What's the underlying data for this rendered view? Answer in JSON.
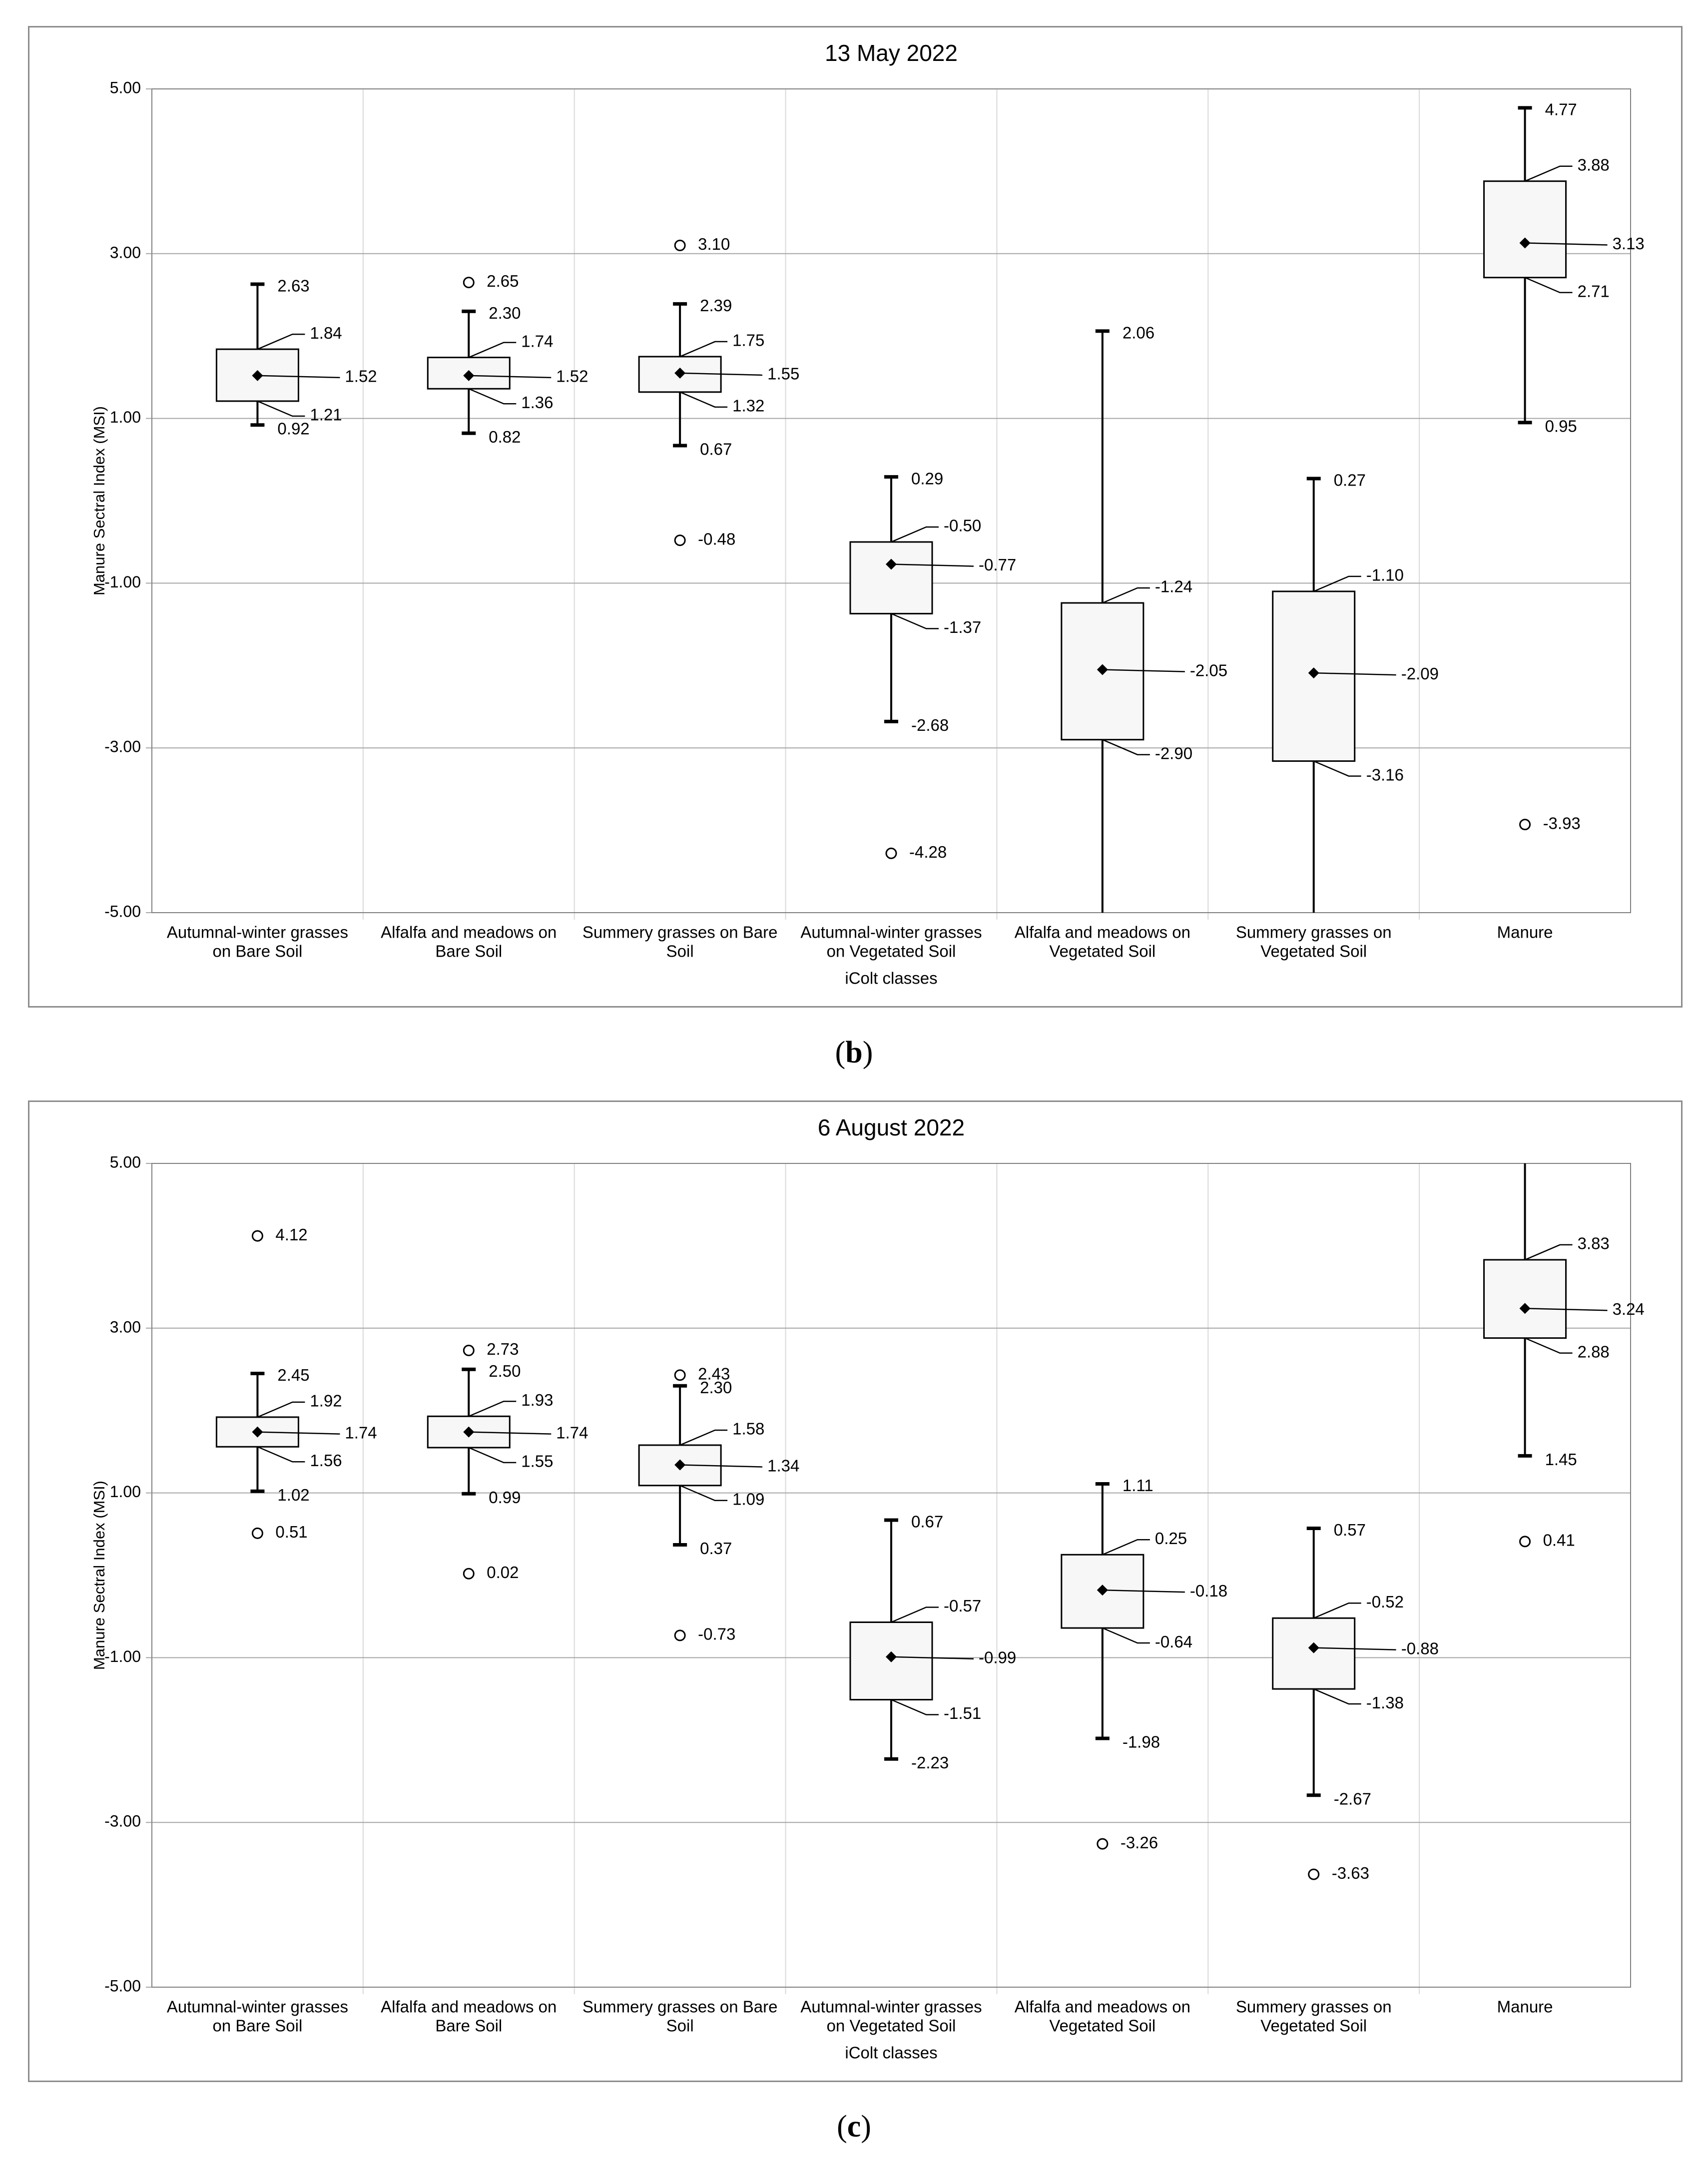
{
  "chart_data": [
    {
      "type": "box",
      "title": "13 May 2022",
      "xlabel": "iColt classes",
      "ylabel": "Manure Sectral Index (MSI)",
      "ylim": [
        -5,
        5
      ],
      "ytick_labels": [
        "5.00",
        "3.00",
        "1.00",
        "-1.00",
        "-3.00",
        "-5.00"
      ],
      "categories": [
        [
          "Autumnal-winter grasses",
          "on Bare Soil"
        ],
        [
          "Alfalfa and meadows on",
          "Bare Soil"
        ],
        [
          "Summery grasses on Bare",
          "Soil"
        ],
        [
          "Autumnal-winter grasses",
          "on Vegetated Soil"
        ],
        [
          "Alfalfa and meadows on",
          "Vegetated Soil"
        ],
        [
          "Summery grasses on",
          "Vegetated Soil"
        ],
        [
          "Manure"
        ]
      ],
      "boxes": [
        {
          "whisker_high": 2.63,
          "q3": 1.84,
          "mean": 1.52,
          "q1": 1.21,
          "whisker_low": 0.92,
          "outliers": [],
          "labels": {
            "whisker_high": "2.63",
            "q3": "1.84",
            "mean": "1.52",
            "q1": "1.21",
            "whisker_low": "0.92"
          }
        },
        {
          "whisker_high": 2.3,
          "q3": 1.74,
          "mean": 1.52,
          "q1": 1.36,
          "whisker_low": 0.82,
          "outliers": [
            2.65
          ],
          "labels": {
            "whisker_high": "2.30",
            "q3": "1.74",
            "mean": "1.52",
            "q1": "1.36",
            "whisker_low": "0.82"
          },
          "outlier_labels": [
            "2.65"
          ]
        },
        {
          "whisker_high": 2.39,
          "q3": 1.75,
          "mean": 1.55,
          "q1": 1.32,
          "whisker_low": 0.67,
          "outliers": [
            3.1,
            -0.48
          ],
          "labels": {
            "whisker_high": "2.39",
            "q3": "1.75",
            "mean": "1.55",
            "q1": "1.32",
            "whisker_low": "0.67"
          },
          "outlier_labels": [
            "3.10",
            "-0.48"
          ]
        },
        {
          "whisker_high": 0.29,
          "q3": -0.5,
          "mean": -0.77,
          "q1": -1.37,
          "whisker_low": -2.68,
          "outliers": [
            -4.28
          ],
          "labels": {
            "whisker_high": "0.29",
            "q3": "-0.50",
            "mean": "-0.77",
            "q1": "-1.37",
            "whisker_low": "-2.68"
          },
          "outlier_labels": [
            "-4.28"
          ]
        },
        {
          "whisker_high": 2.06,
          "q3": -1.24,
          "mean": -2.05,
          "q1": -2.9,
          "whisker_low": -5.0,
          "outliers": [],
          "labels": {
            "whisker_high": "2.06",
            "q3": "-1.24",
            "mean": "-2.05",
            "q1": "-2.90"
          }
        },
        {
          "whisker_high": 0.27,
          "q3": -1.1,
          "mean": -2.09,
          "q1": -3.16,
          "whisker_low": -5.0,
          "outliers": [],
          "labels": {
            "whisker_high": "0.27",
            "q3": "-1.10",
            "mean": "-2.09",
            "q1": "-3.16"
          }
        },
        {
          "whisker_high": 4.77,
          "q3": 3.88,
          "mean": 3.13,
          "q1": 2.71,
          "whisker_low": 0.95,
          "outliers": [
            -3.93
          ],
          "labels": {
            "whisker_high": "4.77",
            "q3": "3.88",
            "mean": "3.13",
            "q1": "2.71",
            "whisker_low": "0.95"
          },
          "outlier_labels": [
            "-3.93"
          ]
        }
      ]
    },
    {
      "type": "box",
      "title": "6 August 2022",
      "xlabel": "iColt classes",
      "ylabel": "Manure Sectral Index (MSI)",
      "ylim": [
        -5,
        5
      ],
      "ytick_labels": [
        "5.00",
        "3.00",
        "1.00",
        "-1.00",
        "-3.00",
        "-5.00"
      ],
      "categories": [
        [
          "Autumnal-winter grasses",
          "on Bare Soil"
        ],
        [
          "Alfalfa and meadows on",
          "Bare Soil"
        ],
        [
          "Summery grasses on Bare",
          "Soil"
        ],
        [
          "Autumnal-winter grasses",
          "on Vegetated Soil"
        ],
        [
          "Alfalfa and meadows on",
          "Vegetated Soil"
        ],
        [
          "Summery grasses on",
          "Vegetated Soil"
        ],
        [
          "Manure"
        ]
      ],
      "boxes": [
        {
          "whisker_high": 2.45,
          "q3": 1.92,
          "mean": 1.74,
          "q1": 1.56,
          "whisker_low": 1.02,
          "outliers": [
            4.12,
            0.51
          ],
          "labels": {
            "whisker_high": "2.45",
            "q3": "1.92",
            "mean": "1.74",
            "q1": "1.56",
            "whisker_low": "1.02"
          },
          "outlier_labels": [
            "4.12",
            "0.51"
          ]
        },
        {
          "whisker_high": 2.5,
          "q3": 1.93,
          "mean": 1.74,
          "q1": 1.55,
          "whisker_low": 0.99,
          "outliers": [
            2.73,
            0.02
          ],
          "labels": {
            "whisker_high": "2.50",
            "q3": "1.93",
            "mean": "1.74",
            "q1": "1.55",
            "whisker_low": "0.99"
          },
          "outlier_labels": [
            "2.73",
            "0.02"
          ]
        },
        {
          "whisker_high": 2.3,
          "q3": 1.58,
          "mean": 1.34,
          "q1": 1.09,
          "whisker_low": 0.37,
          "outliers": [
            2.43,
            -0.73
          ],
          "labels": {
            "whisker_high": "2.30",
            "q3": "1.58",
            "mean": "1.34",
            "q1": "1.09",
            "whisker_low": "0.37"
          },
          "outlier_labels": [
            "2.43",
            "-0.73"
          ]
        },
        {
          "whisker_high": 0.67,
          "q3": -0.57,
          "mean": -0.99,
          "q1": -1.51,
          "whisker_low": -2.23,
          "outliers": [],
          "labels": {
            "whisker_high": "0.67",
            "q3": "-0.57",
            "mean": "-0.99",
            "q1": "-1.51",
            "whisker_low": "-2.23"
          }
        },
        {
          "whisker_high": 1.11,
          "q3": 0.25,
          "mean": -0.18,
          "q1": -0.64,
          "whisker_low": -1.98,
          "outliers": [
            -3.26
          ],
          "labels": {
            "whisker_high": "1.11",
            "q3": "0.25",
            "mean": "-0.18",
            "q1": "-0.64",
            "whisker_low": "-1.98"
          },
          "outlier_labels": [
            "-3.26"
          ]
        },
        {
          "whisker_high": 0.57,
          "q3": -0.52,
          "mean": -0.88,
          "q1": -1.38,
          "whisker_low": -2.67,
          "outliers": [
            -3.63
          ],
          "labels": {
            "whisker_high": "0.57",
            "q3": "-0.52",
            "mean": "-0.88",
            "q1": "-1.38",
            "whisker_low": "-2.67"
          },
          "outlier_labels": [
            "-3.63"
          ]
        },
        {
          "whisker_high": 5.0,
          "q3": 3.83,
          "mean": 3.24,
          "q1": 2.88,
          "whisker_low": 1.45,
          "outliers": [
            0.41
          ],
          "labels": {
            "q3": "3.83",
            "mean": "3.24",
            "q1": "2.88",
            "whisker_low": "1.45"
          },
          "outlier_labels": [
            "0.41"
          ]
        }
      ]
    }
  ],
  "captions": [
    {
      "open": "(",
      "letter": "b",
      "close": ")"
    },
    {
      "open": "(",
      "letter": "c",
      "close": ")"
    }
  ]
}
